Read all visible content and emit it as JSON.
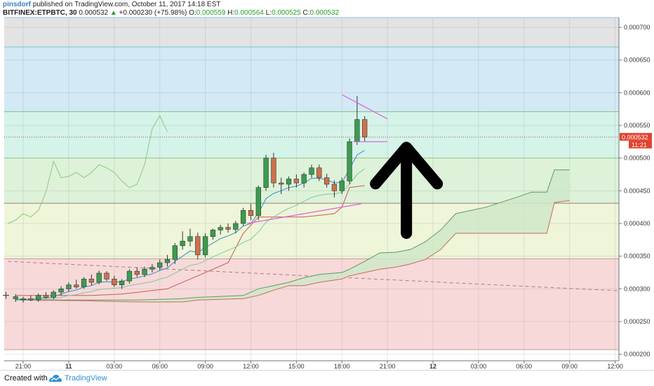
{
  "header": {
    "author": "pinsdorf",
    "published_text": "published on TradingView.com, October 11, 2017 14:18 EST",
    "symbol": "BITFINEX:ETPBTC, 30",
    "last": "0.000532",
    "change": "+0.000230 (+75.98%)",
    "ohlc": {
      "o_label": "O:",
      "o": "0.000559",
      "h_label": "H:",
      "h": "0.000564",
      "l_label": "L:",
      "l": "0.000525",
      "c_label": "C:",
      "c": "0.000532"
    }
  },
  "price_badge": {
    "price": "0.000532",
    "countdown": "11:21"
  },
  "footer": {
    "created_with": "Created with",
    "brand": "TradingView"
  },
  "colors": {
    "accent": "#3b7fc4",
    "up": "#3d9b4f",
    "down": "#d0704a",
    "badge": "#e0422f",
    "trendline": "#e35be3",
    "ema_fast": "#2f8fd0",
    "ema_slow": "#7fc8a0",
    "cloud_fill": "#cfe7c9",
    "lagging": "#8ac97d"
  },
  "chart_data": {
    "type": "candlestick",
    "ylim": [
      0.00019,
      0.000715
    ],
    "y_ticks": [
      "0.000200",
      "0.000250",
      "0.000300",
      "0.000350",
      "0.000400",
      "0.000450",
      "0.000500",
      "0.000550",
      "0.000600",
      "0.000650",
      "0.000700"
    ],
    "x_range": [
      -1.5,
      79.5
    ],
    "x_ticks": [
      {
        "i": 1,
        "label": "21:00",
        "bold": false
      },
      {
        "i": 7,
        "label": "11",
        "bold": true
      },
      {
        "i": 13,
        "label": "03:00",
        "bold": false
      },
      {
        "i": 19,
        "label": "06:00",
        "bold": false
      },
      {
        "i": 25,
        "label": "09:00",
        "bold": false
      },
      {
        "i": 31,
        "label": "12:00",
        "bold": false
      },
      {
        "i": 37,
        "label": "15:00",
        "bold": false
      },
      {
        "i": 43,
        "label": "18:00",
        "bold": false
      },
      {
        "i": 49,
        "label": "21:00",
        "bold": false
      },
      {
        "i": 55,
        "label": "12",
        "bold": true
      },
      {
        "i": 61,
        "label": "03:00",
        "bold": false
      },
      {
        "i": 67,
        "label": "06:00",
        "bold": false
      },
      {
        "i": 73,
        "label": "09:00",
        "bold": false
      },
      {
        "i": 79,
        "label": "12:00",
        "bold": false
      }
    ],
    "zones": [
      {
        "from": 0.00067,
        "to": 0.000715,
        "color": "#e3e3e3",
        "edge": "#9fbfd8"
      },
      {
        "from": 0.000571,
        "to": 0.00067,
        "color": "#d3e9f5",
        "edge": "#7fc6c6"
      },
      {
        "from": 0.0005,
        "to": 0.000571,
        "color": "#d5f3e9",
        "edge": "#79c279"
      },
      {
        "from": 0.000431,
        "to": 0.0005,
        "color": "#ddf2d9",
        "edge": "#a7cf7e"
      },
      {
        "from": 0.000346,
        "to": 0.000431,
        "color": "#eef5d8",
        "edge": "#9a7a7a"
      },
      {
        "from": 0.000207,
        "to": 0.000346,
        "color": "#f7d9d9",
        "edge": "#c79a9a"
      }
    ],
    "candles": [
      {
        "o": 0.000285,
        "h": 0.000292,
        "l": 0.00028,
        "c": 0.000288
      },
      {
        "o": 0.000283,
        "h": 0.000288,
        "l": 0.000279,
        "c": 0.000285
      },
      {
        "o": 0.000285,
        "h": 0.00029,
        "l": 0.000281,
        "c": 0.000283
      },
      {
        "o": 0.000283,
        "h": 0.000293,
        "l": 0.00028,
        "c": 0.00029
      },
      {
        "o": 0.00029,
        "h": 0.000295,
        "l": 0.000285,
        "c": 0.000287
      },
      {
        "o": 0.000287,
        "h": 0.000298,
        "l": 0.000284,
        "c": 0.000295
      },
      {
        "o": 0.000295,
        "h": 0.000304,
        "l": 0.00029,
        "c": 0.0003
      },
      {
        "o": 0.0003,
        "h": 0.00031,
        "l": 0.000296,
        "c": 0.000306
      },
      {
        "o": 0.000306,
        "h": 0.000314,
        "l": 0.0003,
        "c": 0.000303
      },
      {
        "o": 0.000303,
        "h": 0.000318,
        "l": 0.0003,
        "c": 0.000315
      },
      {
        "o": 0.000315,
        "h": 0.000322,
        "l": 0.000305,
        "c": 0.00031
      },
      {
        "o": 0.00031,
        "h": 0.000328,
        "l": 0.000307,
        "c": 0.000324
      },
      {
        "o": 0.000324,
        "h": 0.000327,
        "l": 0.000312,
        "c": 0.000315
      },
      {
        "o": 0.000315,
        "h": 0.00032,
        "l": 0.000303,
        "c": 0.000306
      },
      {
        "o": 0.000306,
        "h": 0.000315,
        "l": 0.0003,
        "c": 0.000312
      },
      {
        "o": 0.000312,
        "h": 0.00033,
        "l": 0.000308,
        "c": 0.000327
      },
      {
        "o": 0.000327,
        "h": 0.000333,
        "l": 0.000318,
        "c": 0.000322
      },
      {
        "o": 0.000322,
        "h": 0.000334,
        "l": 0.000318,
        "c": 0.00033
      },
      {
        "o": 0.00033,
        "h": 0.000338,
        "l": 0.000325,
        "c": 0.000333
      },
      {
        "o": 0.000333,
        "h": 0.000345,
        "l": 0.000328,
        "c": 0.00034
      },
      {
        "o": 0.00034,
        "h": 0.000352,
        "l": 0.000334,
        "c": 0.000345
      },
      {
        "o": 0.000345,
        "h": 0.00037,
        "l": 0.000338,
        "c": 0.000366
      },
      {
        "o": 0.000366,
        "h": 0.000388,
        "l": 0.00036,
        "c": 0.000373
      },
      {
        "o": 0.000373,
        "h": 0.000392,
        "l": 0.000365,
        "c": 0.00038
      },
      {
        "o": 0.00038,
        "h": 0.000386,
        "l": 0.000345,
        "c": 0.000352
      },
      {
        "o": 0.000352,
        "h": 0.000385,
        "l": 0.000348,
        "c": 0.00038
      },
      {
        "o": 0.00038,
        "h": 0.000392,
        "l": 0.000375,
        "c": 0.00039
      },
      {
        "o": 0.00039,
        "h": 0.000398,
        "l": 0.000383,
        "c": 0.000394
      },
      {
        "o": 0.000394,
        "h": 0.0004,
        "l": 0.000386,
        "c": 0.000391
      },
      {
        "o": 0.000391,
        "h": 0.000404,
        "l": 0.000385,
        "c": 0.0004
      },
      {
        "o": 0.0004,
        "h": 0.000424,
        "l": 0.000396,
        "c": 0.00042
      },
      {
        "o": 0.00042,
        "h": 0.00043,
        "l": 0.000405,
        "c": 0.000412
      },
      {
        "o": 0.000412,
        "h": 0.000458,
        "l": 0.000405,
        "c": 0.000455
      },
      {
        "o": 0.000455,
        "h": 0.000505,
        "l": 0.00045,
        "c": 0.0005
      },
      {
        "o": 0.0005,
        "h": 0.000508,
        "l": 0.000455,
        "c": 0.000462
      },
      {
        "o": 0.000462,
        "h": 0.00047,
        "l": 0.000445,
        "c": 0.00046
      },
      {
        "o": 0.00046,
        "h": 0.000472,
        "l": 0.00045,
        "c": 0.000468
      },
      {
        "o": 0.000468,
        "h": 0.000475,
        "l": 0.000455,
        "c": 0.000462
      },
      {
        "o": 0.000462,
        "h": 0.000478,
        "l": 0.000455,
        "c": 0.000475
      },
      {
        "o": 0.000475,
        "h": 0.00049,
        "l": 0.00047,
        "c": 0.000485
      },
      {
        "o": 0.000485,
        "h": 0.00049,
        "l": 0.000465,
        "c": 0.00047
      },
      {
        "o": 0.00047,
        "h": 0.000476,
        "l": 0.000455,
        "c": 0.00046
      },
      {
        "o": 0.00046,
        "h": 0.000466,
        "l": 0.00044,
        "c": 0.00045
      },
      {
        "o": 0.00045,
        "h": 0.00047,
        "l": 0.000445,
        "c": 0.000465
      },
      {
        "o": 0.000465,
        "h": 0.00053,
        "l": 0.00046,
        "c": 0.000525
      },
      {
        "o": 0.000525,
        "h": 0.000595,
        "l": 0.00052,
        "c": 0.000559
      },
      {
        "o": 0.000559,
        "h": 0.000564,
        "l": 0.000525,
        "c": 0.000532
      }
    ],
    "ema_fast": [
      0.000284,
      0.000284,
      0.000284,
      0.000286,
      0.000286,
      0.000288,
      0.000292,
      0.000296,
      0.000298,
      0.000303,
      0.000305,
      0.00031,
      0.000311,
      0.00031,
      0.000311,
      0.000315,
      0.000317,
      0.00032,
      0.000323,
      0.000328,
      0.000332,
      0.000342,
      0.00035,
      0.000358,
      0.000356,
      0.000363,
      0.00037,
      0.000377,
      0.000381,
      0.000386,
      0.000396,
      0.0004,
      0.000416,
      0.000438,
      0.000446,
      0.00045,
      0.000455,
      0.000457,
      0.000462,
      0.000469,
      0.000469,
      0.000467,
      0.000462,
      0.000463,
      0.000483,
      0.000505,
      0.000512
    ],
    "ema_slow": [
      0.000283,
      0.000283,
      0.000283,
      0.000284,
      0.000284,
      0.000285,
      0.000287,
      0.00029,
      0.000291,
      0.000294,
      0.000296,
      0.000299,
      0.0003,
      0.000301,
      0.000302,
      0.000305,
      0.000307,
      0.000309,
      0.000311,
      0.000315,
      0.000318,
      0.000324,
      0.00033,
      0.000336,
      0.000338,
      0.000343,
      0.000349,
      0.000354,
      0.000359,
      0.000364,
      0.000371,
      0.000376,
      0.000387,
      0.000402,
      0.00041,
      0.000417,
      0.000423,
      0.000428,
      0.000434,
      0.00044,
      0.000443,
      0.000445,
      0.000445,
      0.000448,
      0.00046,
      0.000475,
      0.000484
    ],
    "lagging": [
      [
        -1,
        0.0004
      ],
      [
        0,
        0.000405
      ],
      [
        1,
        0.000415
      ],
      [
        2,
        0.00041
      ],
      [
        3,
        0.00042
      ],
      [
        4,
        0.000448
      ],
      [
        5,
        0.000495
      ],
      [
        6,
        0.00047
      ],
      [
        7,
        0.000472
      ],
      [
        8,
        0.000478
      ],
      [
        9,
        0.00047
      ],
      [
        10,
        0.000478
      ],
      [
        11,
        0.00049
      ],
      [
        12,
        0.000485
      ],
      [
        13,
        0.000478
      ],
      [
        14,
        0.000465
      ],
      [
        15,
        0.000455
      ],
      [
        16,
        0.00046
      ],
      [
        17,
        0.00049
      ],
      [
        18,
        0.000545
      ],
      [
        19,
        0.000565
      ],
      [
        20,
        0.00054
      ]
    ],
    "cloud_top": [
      [
        0,
        0.000283
      ],
      [
        8,
        0.000283
      ],
      [
        16,
        0.000283
      ],
      [
        22,
        0.000285
      ],
      [
        24,
        0.000287
      ],
      [
        30,
        0.00029
      ],
      [
        32,
        0.0003
      ],
      [
        34,
        0.000305
      ],
      [
        36,
        0.00031
      ],
      [
        38,
        0.000317
      ],
      [
        40,
        0.000322
      ],
      [
        43,
        0.000325
      ],
      [
        44,
        0.00033
      ],
      [
        46,
        0.000342
      ],
      [
        48,
        0.000355
      ],
      [
        50,
        0.000356
      ],
      [
        52,
        0.00036
      ],
      [
        54,
        0.000372
      ],
      [
        56,
        0.00039
      ],
      [
        58,
        0.000415
      ],
      [
        62,
        0.000425
      ],
      [
        66,
        0.00044
      ],
      [
        68,
        0.000448
      ],
      [
        70,
        0.000448
      ],
      [
        71,
        0.000482
      ],
      [
        73,
        0.000482
      ]
    ],
    "cloud_bottom": [
      [
        0,
        0.000283
      ],
      [
        8,
        0.000282
      ],
      [
        16,
        0.00028
      ],
      [
        22,
        0.00028
      ],
      [
        24,
        0.000283
      ],
      [
        30,
        0.000285
      ],
      [
        32,
        0.00029
      ],
      [
        34,
        0.000298
      ],
      [
        36,
        0.000305
      ],
      [
        38,
        0.000305
      ],
      [
        40,
        0.00031
      ],
      [
        43,
        0.000315
      ],
      [
        44,
        0.00032
      ],
      [
        46,
        0.000325
      ],
      [
        48,
        0.00033
      ],
      [
        50,
        0.000333
      ],
      [
        52,
        0.000338
      ],
      [
        54,
        0.000345
      ],
      [
        56,
        0.00036
      ],
      [
        58,
        0.000385
      ],
      [
        62,
        0.000385
      ],
      [
        66,
        0.000385
      ],
      [
        68,
        0.000385
      ],
      [
        70,
        0.000385
      ],
      [
        71,
        0.000432
      ],
      [
        73,
        0.000435
      ]
    ],
    "base_line": [
      [
        0,
        0.00029
      ],
      [
        10,
        0.00029
      ],
      [
        14,
        0.000292
      ],
      [
        20,
        0.0003
      ],
      [
        24,
        0.00032
      ],
      [
        26,
        0.00033
      ],
      [
        28,
        0.00034
      ],
      [
        30,
        0.000385
      ],
      [
        32,
        0.00041
      ],
      [
        38,
        0.00041
      ],
      [
        42,
        0.000415
      ],
      [
        43,
        0.000425
      ],
      [
        44,
        0.000455
      ],
      [
        46,
        0.000458
      ]
    ],
    "dashed_trend": [
      [
        -1,
        0.000342
      ],
      [
        79.5,
        0.000297
      ]
    ],
    "dotted_price": 0.000532,
    "trendlines": [
      [
        [
          43.0,
          0.000597
        ],
        [
          49.0,
          0.00056
        ]
      ],
      [
        [
          44.5,
          0.000525
        ],
        [
          49.0,
          0.000525
        ]
      ],
      [
        [
          30.5,
          0.0004
        ],
        [
          45.5,
          0.00043
        ]
      ]
    ],
    "arrow": {
      "x": 51.5,
      "y_base": 0.000385,
      "y_tip": 0.000525,
      "direction": "up"
    }
  }
}
